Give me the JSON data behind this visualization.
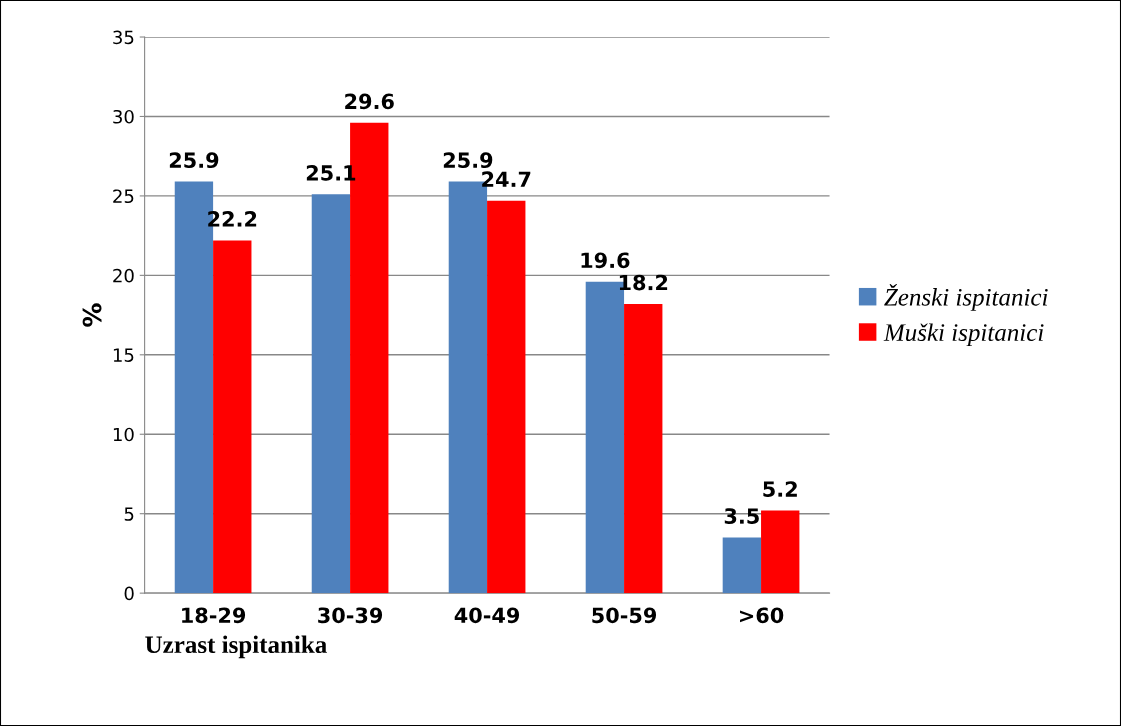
{
  "chart_data": {
    "type": "bar",
    "xlabel": "Uzrast ispitanika",
    "ylabel": "%",
    "categories": [
      "18-29",
      "30-39",
      "40-49",
      "50-59",
      ">60"
    ],
    "series": [
      {
        "name": "Ženski ispitanici",
        "color": "#4f81bd",
        "values": [
          25.9,
          25.1,
          25.9,
          19.6,
          3.5
        ]
      },
      {
        "name": "Muški ispitanici",
        "color": "#ff0000",
        "values": [
          22.2,
          29.6,
          24.7,
          18.2,
          5.2
        ]
      }
    ],
    "ylim": [
      0,
      35
    ],
    "yticks": [
      0,
      5,
      10,
      15,
      20,
      25,
      30,
      35
    ],
    "grid": "y",
    "legend": "right",
    "data_labels": true
  }
}
